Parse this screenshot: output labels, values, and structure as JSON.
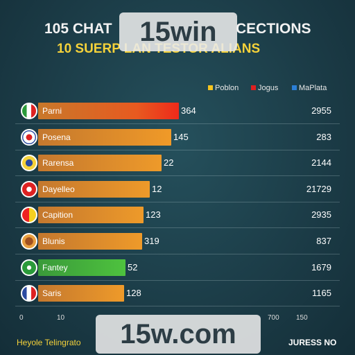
{
  "header": {
    "title_left": "105 CHAT",
    "title_right": "CECTIONS",
    "subtitle": "10 SUERP LAN TESTOR ALIANS"
  },
  "legend": [
    "Poblon",
    "Jogus",
    "MaPlata"
  ],
  "rows": [
    {
      "label": "Parni",
      "value": "364",
      "right": "2955"
    },
    {
      "label": "Posena",
      "value": "145",
      "right": "283"
    },
    {
      "label": "Rarensa",
      "value": "22",
      "right": "2144"
    },
    {
      "label": "Dayelleo",
      "value": "12",
      "right": "21729"
    },
    {
      "label": "Capition",
      "value": "123",
      "right": "2935"
    },
    {
      "label": "Blunis",
      "value": "319",
      "right": "837"
    },
    {
      "label": "Fantey",
      "value": "52",
      "right": "1679"
    },
    {
      "label": "Saris",
      "value": "128",
      "right": "1165"
    }
  ],
  "axis": [
    "0",
    "10",
    "700",
    "150"
  ],
  "watermarks": [
    "15win",
    "15w.com"
  ],
  "footer": {
    "left": "Heyole Telingrato",
    "right": "JURESS NO"
  }
}
